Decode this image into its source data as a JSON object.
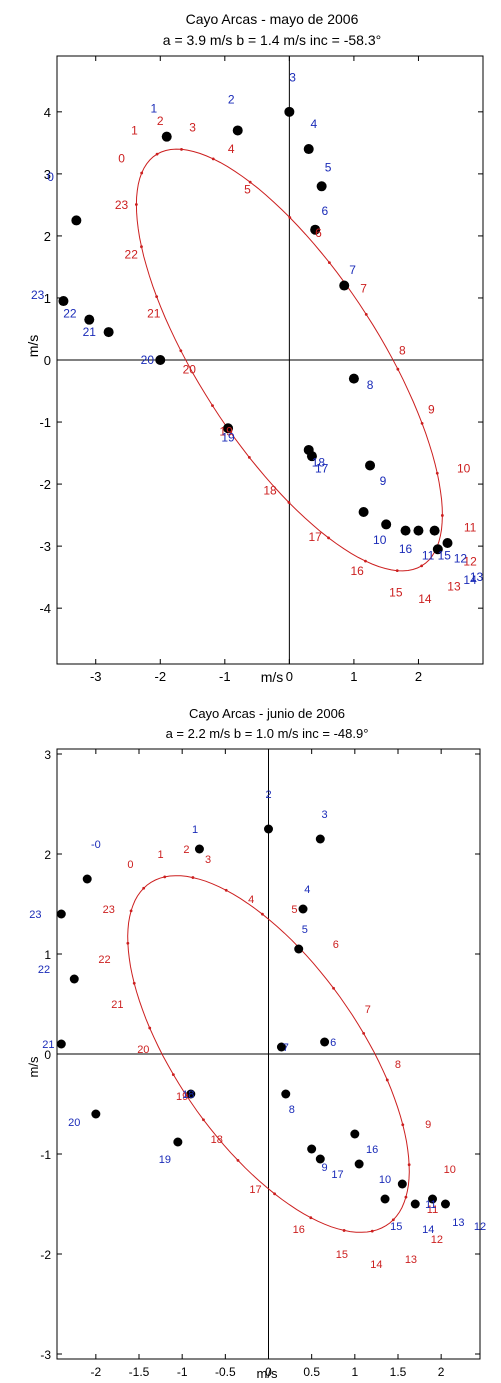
{
  "colors": {
    "ellipse": "#cc1f1f",
    "red_labels": "#cc1f1f",
    "blue_labels": "#1a2bb8",
    "points": "#000000",
    "axes": "#000000"
  },
  "chart_data": [
    {
      "type": "scatter",
      "title": "Cayo Arcas - mayo de 2006",
      "subtitle": "a =  3.9 m/s    b =  1.4 m/s    inc = -58.3°",
      "xlabel": "m/s",
      "ylabel": "m/s",
      "xlim": [
        -3.6,
        3.0
      ],
      "ylim": [
        -4.9,
        4.9
      ],
      "xticks": [
        -3,
        -2,
        -1,
        0,
        1,
        2
      ],
      "xtick_labels": [
        "-3",
        "-2",
        "-1",
        "0",
        "1",
        "2"
      ],
      "yticks": [
        -4,
        -3,
        -2,
        -1,
        0,
        1,
        2,
        3,
        4
      ],
      "ytick_labels": [
        "-4",
        "-3",
        "-2",
        "-1",
        "0",
        "1",
        "2",
        "3",
        "4"
      ],
      "grid": false,
      "series": [
        {
          "kind": "observed",
          "points": [
            [
              -1.9,
              3.6
            ],
            [
              -0.8,
              3.7
            ],
            [
              0.0,
              4.0
            ],
            [
              0.3,
              3.4
            ],
            [
              0.5,
              2.8
            ],
            [
              0.4,
              2.1
            ],
            [
              0.85,
              1.2
            ],
            [
              1.0,
              -0.3
            ],
            [
              1.25,
              -1.7
            ],
            [
              0.3,
              -1.45
            ],
            [
              0.35,
              -1.55
            ],
            [
              1.15,
              -2.45
            ],
            [
              1.5,
              -2.65
            ],
            [
              1.8,
              -2.75
            ],
            [
              2.0,
              -2.75
            ],
            [
              2.25,
              -2.75
            ],
            [
              2.3,
              -3.05
            ],
            [
              2.45,
              -2.95
            ],
            [
              -0.95,
              -1.1
            ],
            [
              -2.0,
              0.0
            ],
            [
              -2.8,
              0.45
            ],
            [
              -3.1,
              0.65
            ],
            [
              -3.5,
              0.95
            ],
            [
              -3.3,
              2.25
            ]
          ]
        },
        {
          "kind": "fitted-ellipse",
          "center": [
            0.0,
            0.0
          ],
          "semi_major": 3.9,
          "semi_minor": 1.4,
          "inclination_deg": -58.3
        }
      ],
      "red_labels": [
        {
          "t": "0",
          "x": -2.6,
          "y": 3.25
        },
        {
          "t": "1",
          "x": -2.4,
          "y": 3.7
        },
        {
          "t": "2",
          "x": -2.0,
          "y": 3.85
        },
        {
          "t": "3",
          "x": -1.5,
          "y": 3.75
        },
        {
          "t": "4",
          "x": -0.9,
          "y": 3.4
        },
        {
          "t": "5",
          "x": -0.65,
          "y": 2.75
        },
        {
          "t": "6",
          "x": 0.45,
          "y": 2.05
        },
        {
          "t": "7",
          "x": 1.15,
          "y": 1.15
        },
        {
          "t": "8",
          "x": 1.75,
          "y": 0.15
        },
        {
          "t": "9",
          "x": 2.2,
          "y": -0.8
        },
        {
          "t": "10",
          "x": 2.7,
          "y": -1.75
        },
        {
          "t": "11",
          "x": 2.8,
          "y": -2.7
        },
        {
          "t": "12",
          "x": 2.8,
          "y": -3.25
        },
        {
          "t": "13",
          "x": 2.55,
          "y": -3.65
        },
        {
          "t": "14",
          "x": 2.1,
          "y": -3.85
        },
        {
          "t": "15",
          "x": 1.65,
          "y": -3.75
        },
        {
          "t": "16",
          "x": 1.05,
          "y": -3.4
        },
        {
          "t": "17",
          "x": 0.4,
          "y": -2.85
        },
        {
          "t": "18",
          "x": -0.3,
          "y": -2.1
        },
        {
          "t": "19",
          "x": -0.98,
          "y": -1.15
        },
        {
          "t": "20",
          "x": -1.55,
          "y": -0.15
        },
        {
          "t": "21",
          "x": -2.1,
          "y": 0.75
        },
        {
          "t": "22",
          "x": -2.45,
          "y": 1.7
        },
        {
          "t": "23",
          "x": -2.6,
          "y": 2.5
        }
      ],
      "blue_labels": [
        {
          "t": "0",
          "x": -3.7,
          "y": 2.95
        },
        {
          "t": "1",
          "x": -2.1,
          "y": 4.05
        },
        {
          "t": "2",
          "x": -0.9,
          "y": 4.2
        },
        {
          "t": "3",
          "x": 0.05,
          "y": 4.55
        },
        {
          "t": "4",
          "x": 0.38,
          "y": 3.8
        },
        {
          "t": "5",
          "x": 0.6,
          "y": 3.1
        },
        {
          "t": "6",
          "x": 0.55,
          "y": 2.4
        },
        {
          "t": "7",
          "x": 0.98,
          "y": 1.45
        },
        {
          "t": "8",
          "x": 1.25,
          "y": -0.4
        },
        {
          "t": "9",
          "x": 1.45,
          "y": -1.95
        },
        {
          "t": "10",
          "x": 1.4,
          "y": -2.9
        },
        {
          "t": "11",
          "x": 2.15,
          "y": -3.15
        },
        {
          "t": "12",
          "x": 2.65,
          "y": -3.2
        },
        {
          "t": "13",
          "x": 2.9,
          "y": -3.5
        },
        {
          "t": "14",
          "x": 2.8,
          "y": -3.55
        },
        {
          "t": "15",
          "x": 2.4,
          "y": -3.15
        },
        {
          "t": "16",
          "x": 1.8,
          "y": -3.05
        },
        {
          "t": "17",
          "x": 0.5,
          "y": -1.75
        },
        {
          "t": "18",
          "x": 0.45,
          "y": -1.65
        },
        {
          "t": "19",
          "x": -0.95,
          "y": -1.25
        },
        {
          "t": "20",
          "x": -2.2,
          "y": 0.0
        },
        {
          "t": "21",
          "x": -3.1,
          "y": 0.45
        },
        {
          "t": "22",
          "x": -3.4,
          "y": 0.75
        },
        {
          "t": "23",
          "x": -3.9,
          "y": 1.05
        }
      ]
    },
    {
      "type": "scatter",
      "title": "Cayo Arcas - junio de 2006",
      "subtitle": "a = 2.2 m/s    b = 1.0 m/s    inc = -48.9°",
      "xlabel": "m/s",
      "ylabel": "m/s",
      "xlim": [
        -2.45,
        2.45
      ],
      "ylim": [
        -3.05,
        3.05
      ],
      "xticks": [
        -2,
        -1.5,
        -1,
        -0.5,
        0,
        0.5,
        1,
        1.5,
        2
      ],
      "xtick_labels": [
        "-2",
        "-1.5",
        "-1",
        "-0.5",
        "0",
        "0.5",
        "1",
        "1.5",
        "2"
      ],
      "yticks": [
        -3,
        -2,
        -1,
        0,
        1,
        2,
        3
      ],
      "ytick_labels": [
        "-3",
        "-2",
        "-1",
        "0",
        "1",
        "2",
        "3"
      ],
      "grid": false,
      "series": [
        {
          "kind": "observed",
          "points": [
            [
              -0.8,
              2.05
            ],
            [
              0.0,
              2.25
            ],
            [
              0.6,
              2.15
            ],
            [
              0.4,
              1.45
            ],
            [
              0.35,
              1.05
            ],
            [
              0.65,
              0.12
            ],
            [
              0.15,
              0.07
            ],
            [
              0.2,
              -0.4
            ],
            [
              0.5,
              -0.95
            ],
            [
              0.6,
              -1.05
            ],
            [
              1.0,
              -0.8
            ],
            [
              1.05,
              -1.1
            ],
            [
              1.35,
              -1.45
            ],
            [
              1.55,
              -1.3
            ],
            [
              1.7,
              -1.5
            ],
            [
              1.9,
              -1.45
            ],
            [
              2.05,
              -1.5
            ],
            [
              -0.9,
              -0.4
            ],
            [
              -1.05,
              -0.88
            ],
            [
              -2.0,
              -0.6
            ],
            [
              -2.4,
              0.1
            ],
            [
              -2.25,
              0.75
            ],
            [
              -2.4,
              1.4
            ],
            [
              -2.1,
              1.75
            ]
          ]
        },
        {
          "kind": "fitted-ellipse",
          "center": [
            0.0,
            0.0
          ],
          "semi_major": 2.2,
          "semi_minor": 1.0,
          "inclination_deg": -48.9
        }
      ],
      "red_labels": [
        {
          "t": "0",
          "x": -1.6,
          "y": 1.9
        },
        {
          "t": "1",
          "x": -1.25,
          "y": 2.0
        },
        {
          "t": "2",
          "x": -0.95,
          "y": 2.05
        },
        {
          "t": "3",
          "x": -0.7,
          "y": 1.95
        },
        {
          "t": "4",
          "x": -0.2,
          "y": 1.55
        },
        {
          "t": "5",
          "x": 0.3,
          "y": 1.45
        },
        {
          "t": "6",
          "x": 0.78,
          "y": 1.1
        },
        {
          "t": "7",
          "x": 1.15,
          "y": 0.45
        },
        {
          "t": "8",
          "x": 1.5,
          "y": -0.1
        },
        {
          "t": "9",
          "x": 1.85,
          "y": -0.7
        },
        {
          "t": "10",
          "x": 2.1,
          "y": -1.15
        },
        {
          "t": "11",
          "x": 1.9,
          "y": -1.55
        },
        {
          "t": "12",
          "x": 1.95,
          "y": -1.85
        },
        {
          "t": "13",
          "x": 1.65,
          "y": -2.05
        },
        {
          "t": "14",
          "x": 1.25,
          "y": -2.1
        },
        {
          "t": "15",
          "x": 0.85,
          "y": -2.0
        },
        {
          "t": "16",
          "x": 0.35,
          "y": -1.75
        },
        {
          "t": "17",
          "x": -0.15,
          "y": -1.35
        },
        {
          "t": "18",
          "x": -0.6,
          "y": -0.85
        },
        {
          "t": "19",
          "x": -1.0,
          "y": -0.42
        },
        {
          "t": "20",
          "x": -1.45,
          "y": 0.05
        },
        {
          "t": "21",
          "x": -1.75,
          "y": 0.5
        },
        {
          "t": "22",
          "x": -1.9,
          "y": 0.95
        },
        {
          "t": "23",
          "x": -1.85,
          "y": 1.45
        }
      ],
      "blue_labels": [
        {
          "t": "-0",
          "x": -2.0,
          "y": 2.1
        },
        {
          "t": "1",
          "x": -0.85,
          "y": 2.25
        },
        {
          "t": "2",
          "x": 0.0,
          "y": 2.6
        },
        {
          "t": "3",
          "x": 0.65,
          "y": 2.4
        },
        {
          "t": "4",
          "x": 0.45,
          "y": 1.65
        },
        {
          "t": "5",
          "x": 0.42,
          "y": 1.25
        },
        {
          "t": "6",
          "x": 0.75,
          "y": 0.12
        },
        {
          "t": "7",
          "x": 0.2,
          "y": 0.07
        },
        {
          "t": "8",
          "x": 0.27,
          "y": -0.55
        },
        {
          "t": "9",
          "x": 0.65,
          "y": -1.13
        },
        {
          "t": "10",
          "x": 1.35,
          "y": -1.25
        },
        {
          "t": "11",
          "x": 1.88,
          "y": -1.5
        },
        {
          "t": "12",
          "x": 2.45,
          "y": -1.72
        },
        {
          "t": "13",
          "x": 2.2,
          "y": -1.68
        },
        {
          "t": "14",
          "x": 1.85,
          "y": -1.75
        },
        {
          "t": "15",
          "x": 1.48,
          "y": -1.72
        },
        {
          "t": "16",
          "x": 1.2,
          "y": -0.95
        },
        {
          "t": "17",
          "x": 0.8,
          "y": -1.2
        },
        {
          "t": "18",
          "x": -0.93,
          "y": -0.4
        },
        {
          "t": "19",
          "x": -1.2,
          "y": -1.05
        },
        {
          "t": "20",
          "x": -2.25,
          "y": -0.68
        },
        {
          "t": "21",
          "x": -2.55,
          "y": 0.1
        },
        {
          "t": "22",
          "x": -2.6,
          "y": 0.85
        },
        {
          "t": "23",
          "x": -2.7,
          "y": 1.4
        }
      ]
    }
  ]
}
